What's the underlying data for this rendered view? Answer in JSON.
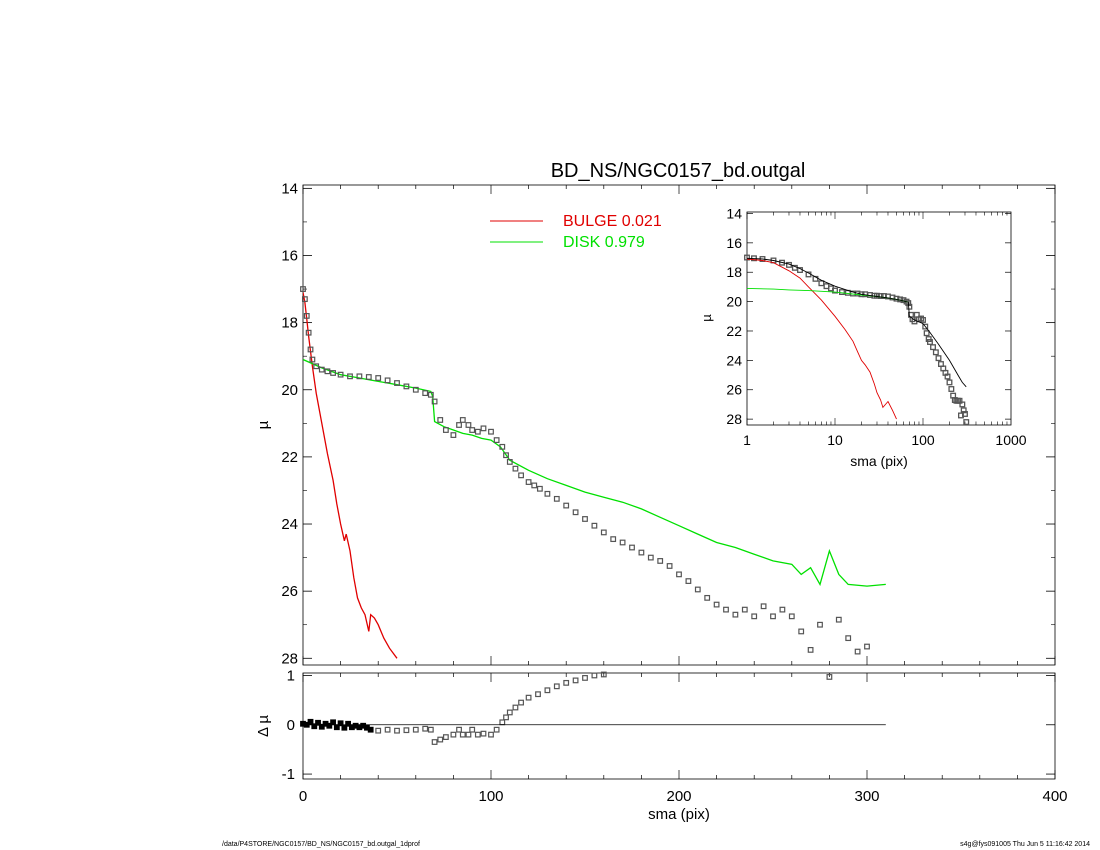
{
  "title": "BD_NS/NGC0157_bd.outgal",
  "footer": {
    "path": "/data/P4STORE/NGC0157/BD_NS/NGC0157_bd.outgal_1dprof",
    "stamp": "s4g@fys091005  Thu Jun  5 11:16:42 2014"
  },
  "colors": {
    "bulge": "#e00000",
    "disk": "#00e000",
    "data": "#555555",
    "model": "#000000"
  },
  "chart_data": [
    {
      "panel": "main",
      "type": "line",
      "title": "BD_NS/NGC0157_bd.outgal",
      "xlabel": "",
      "ylabel": "µ",
      "xlim": [
        0,
        400
      ],
      "ylim": [
        28.2,
        13.9
      ],
      "yticks": [
        14,
        16,
        18,
        20,
        22,
        24,
        26,
        28
      ],
      "legend": {
        "placement": "top-center",
        "entries": [
          {
            "label": "BULGE  0.021",
            "color": "#e00000"
          },
          {
            "label": "DISK  0.979",
            "color": "#00e000"
          }
        ]
      },
      "series": [
        {
          "name": "BULGE",
          "color": "#e00000",
          "x": [
            0,
            1,
            2,
            3,
            5,
            7,
            10,
            13,
            16,
            18,
            20,
            22,
            23,
            25,
            27,
            29,
            31,
            33,
            35,
            36,
            38,
            40,
            43,
            46,
            50
          ],
          "y": [
            17.1,
            17.4,
            17.9,
            18.4,
            19.3,
            20.1,
            21.0,
            21.9,
            22.7,
            23.4,
            24.0,
            24.5,
            24.3,
            24.8,
            25.6,
            26.2,
            26.5,
            26.7,
            27.2,
            26.7,
            26.8,
            27.0,
            27.4,
            27.7,
            28.0
          ]
        },
        {
          "name": "DISK",
          "color": "#00e000",
          "x": [
            0,
            10,
            20,
            30,
            40,
            50,
            60,
            68,
            69,
            70,
            75,
            80,
            85,
            90,
            95,
            100,
            105,
            110,
            120,
            130,
            140,
            150,
            160,
            170,
            180,
            190,
            200,
            210,
            220,
            230,
            235,
            240,
            250,
            260,
            265,
            270,
            275,
            280,
            285,
            290,
            300,
            310
          ],
          "y": [
            19.1,
            19.35,
            19.55,
            19.65,
            19.75,
            19.85,
            19.95,
            20.05,
            20.2,
            20.95,
            21.1,
            21.2,
            21.3,
            21.35,
            21.45,
            21.5,
            21.7,
            22.1,
            22.4,
            22.65,
            22.85,
            23.05,
            23.2,
            23.35,
            23.55,
            23.8,
            24.05,
            24.3,
            24.55,
            24.7,
            24.8,
            24.9,
            25.1,
            25.2,
            25.5,
            25.3,
            25.8,
            24.8,
            25.5,
            25.8,
            25.85,
            25.8
          ]
        },
        {
          "name": "data",
          "color": "#555555",
          "x": [
            0,
            1,
            2,
            3,
            4,
            5,
            7,
            10,
            13,
            16,
            20,
            25,
            30,
            35,
            40,
            45,
            50,
            55,
            60,
            65,
            68,
            70,
            73,
            76,
            80,
            83,
            85,
            88,
            90,
            93,
            96,
            100,
            103,
            106,
            108,
            110,
            113,
            116,
            120,
            123,
            126,
            130,
            135,
            140,
            145,
            150,
            155,
            160,
            165,
            170,
            175,
            180,
            185,
            190,
            195,
            200,
            205,
            210,
            215,
            220,
            225,
            230,
            235,
            240,
            245,
            250,
            255,
            260,
            265,
            270,
            275,
            280,
            285,
            290,
            295,
            300,
            305,
            310
          ],
          "y": [
            17.0,
            17.3,
            17.8,
            18.3,
            18.8,
            19.1,
            19.3,
            19.4,
            19.45,
            19.5,
            19.55,
            19.6,
            19.6,
            19.62,
            19.65,
            19.72,
            19.8,
            19.9,
            20.0,
            20.1,
            20.15,
            20.35,
            20.9,
            21.2,
            21.35,
            21.05,
            20.9,
            21.05,
            21.2,
            21.25,
            21.15,
            21.25,
            21.5,
            21.7,
            21.95,
            22.15,
            22.35,
            22.55,
            22.75,
            22.85,
            22.95,
            23.1,
            23.25,
            23.45,
            23.65,
            23.85,
            24.05,
            24.25,
            24.45,
            24.55,
            24.7,
            24.85,
            25.0,
            25.1,
            25.25,
            25.5,
            25.7,
            25.95,
            26.2,
            26.4,
            26.55,
            26.7,
            26.55,
            26.75,
            26.45,
            26.75,
            26.55,
            26.75,
            27.2,
            27.75,
            27.0,
            28.8,
            26.85,
            27.4,
            27.8,
            27.65,
            28.6,
            28.9
          ]
        }
      ]
    },
    {
      "panel": "residual",
      "type": "scatter",
      "xlabel": "sma (pix)",
      "ylabel": "Δ µ",
      "xlim": [
        0,
        400
      ],
      "ylim": [
        -1.1,
        1.05
      ],
      "xticks": [
        0,
        100,
        200,
        300,
        400
      ],
      "yticks": [
        -1,
        0,
        1
      ],
      "series": [
        {
          "name": "residual",
          "color": "#555555",
          "x": [
            0,
            2,
            4,
            6,
            8,
            10,
            12,
            14,
            16,
            18,
            20,
            22,
            24,
            26,
            28,
            30,
            32,
            34,
            36,
            40,
            45,
            50,
            55,
            60,
            65,
            68,
            70,
            73,
            76,
            80,
            83,
            85,
            88,
            90,
            93,
            96,
            100,
            103,
            106,
            108,
            110,
            113,
            116,
            120,
            125,
            130,
            135,
            140,
            145,
            150,
            155,
            160,
            280
          ],
          "y": [
            0.02,
            0.0,
            0.06,
            -0.03,
            0.04,
            -0.04,
            0.02,
            -0.02,
            0.05,
            -0.05,
            0.03,
            -0.06,
            0.02,
            -0.05,
            -0.02,
            -0.05,
            -0.02,
            -0.06,
            -0.1,
            -0.12,
            -0.1,
            -0.12,
            -0.11,
            -0.1,
            -0.08,
            -0.1,
            -0.35,
            -0.3,
            -0.25,
            -0.2,
            -0.1,
            -0.2,
            -0.2,
            -0.1,
            -0.2,
            -0.18,
            -0.2,
            -0.1,
            0.05,
            0.15,
            0.25,
            0.35,
            0.45,
            0.55,
            0.62,
            0.7,
            0.78,
            0.85,
            0.9,
            0.95,
            1.0,
            1.02,
            0.97
          ]
        },
        {
          "name": "zero",
          "color": "#000000",
          "x": [
            0,
            310
          ],
          "y": [
            0,
            0
          ]
        }
      ]
    },
    {
      "panel": "inset",
      "type": "line",
      "xlabel": "sma (pix)",
      "ylabel": "µ",
      "xscale": "log",
      "xlim": [
        1,
        1000
      ],
      "ylim": [
        28.4,
        13.9
      ],
      "xticks": [
        1,
        10,
        100,
        1000
      ],
      "yticks": [
        14,
        16,
        18,
        20,
        22,
        24,
        26,
        28
      ],
      "series": [
        {
          "name": "BULGE",
          "color": "#e00000",
          "x": [
            1,
            1.5,
            2,
            3,
            4,
            5,
            7,
            10,
            13,
            16,
            18,
            20,
            22,
            25,
            28,
            30,
            33,
            35,
            40,
            45,
            50
          ],
          "y": [
            17.1,
            17.2,
            17.35,
            17.9,
            18.4,
            19.0,
            19.9,
            21.0,
            21.9,
            22.7,
            23.4,
            24.0,
            24.3,
            24.8,
            25.6,
            26.2,
            26.7,
            27.2,
            26.8,
            27.4,
            28.0
          ]
        },
        {
          "name": "DISK",
          "color": "#00e000",
          "x": [
            1,
            2,
            3,
            5,
            10,
            20,
            30,
            40,
            50,
            60,
            68
          ],
          "y": [
            19.1,
            19.15,
            19.2,
            19.25,
            19.35,
            19.55,
            19.65,
            19.75,
            19.85,
            19.95,
            20.05
          ]
        },
        {
          "name": "model",
          "color": "#000000",
          "x": [
            1,
            1.5,
            2,
            3,
            4,
            5,
            7,
            10,
            15,
            20,
            30,
            40,
            50,
            60,
            68,
            70,
            80,
            100,
            120,
            150,
            200,
            250,
            280,
            310
          ],
          "y": [
            17.05,
            17.1,
            17.2,
            17.45,
            17.75,
            18.05,
            18.55,
            18.95,
            19.3,
            19.5,
            19.65,
            19.75,
            19.85,
            19.95,
            20.05,
            21.0,
            21.25,
            21.5,
            22.1,
            22.9,
            24.0,
            25.0,
            25.5,
            25.8
          ]
        },
        {
          "name": "data",
          "color": "#555555",
          "x": [
            1,
            1.2,
            1.5,
            2,
            2.5,
            3,
            3.5,
            4,
            5,
            6,
            7,
            8,
            9,
            10,
            12,
            14,
            16,
            18,
            20,
            22,
            25,
            28,
            30,
            33,
            36,
            40,
            45,
            50,
            55,
            60,
            65,
            68,
            70,
            73,
            76,
            80,
            85,
            90,
            95,
            100,
            106,
            110,
            116,
            120,
            130,
            140,
            150,
            160,
            170,
            180,
            190,
            200,
            210,
            220,
            230,
            240,
            250,
            260,
            270,
            280,
            290,
            300,
            310
          ],
          "y": [
            17.0,
            17.05,
            17.1,
            17.2,
            17.35,
            17.5,
            17.7,
            17.85,
            18.15,
            18.45,
            18.75,
            18.95,
            19.1,
            19.25,
            19.35,
            19.4,
            19.45,
            19.45,
            19.5,
            19.5,
            19.55,
            19.6,
            19.6,
            19.62,
            19.62,
            19.65,
            19.72,
            19.8,
            19.85,
            19.9,
            20.0,
            20.1,
            20.35,
            20.9,
            21.2,
            21.35,
            20.9,
            21.2,
            21.15,
            21.25,
            21.7,
            22.15,
            22.55,
            22.75,
            23.1,
            23.45,
            23.85,
            24.25,
            24.55,
            24.85,
            25.1,
            25.5,
            25.95,
            26.4,
            26.7,
            26.75,
            26.75,
            26.75,
            27.75,
            27.0,
            27.4,
            27.65,
            28.2
          ]
        }
      ]
    }
  ]
}
